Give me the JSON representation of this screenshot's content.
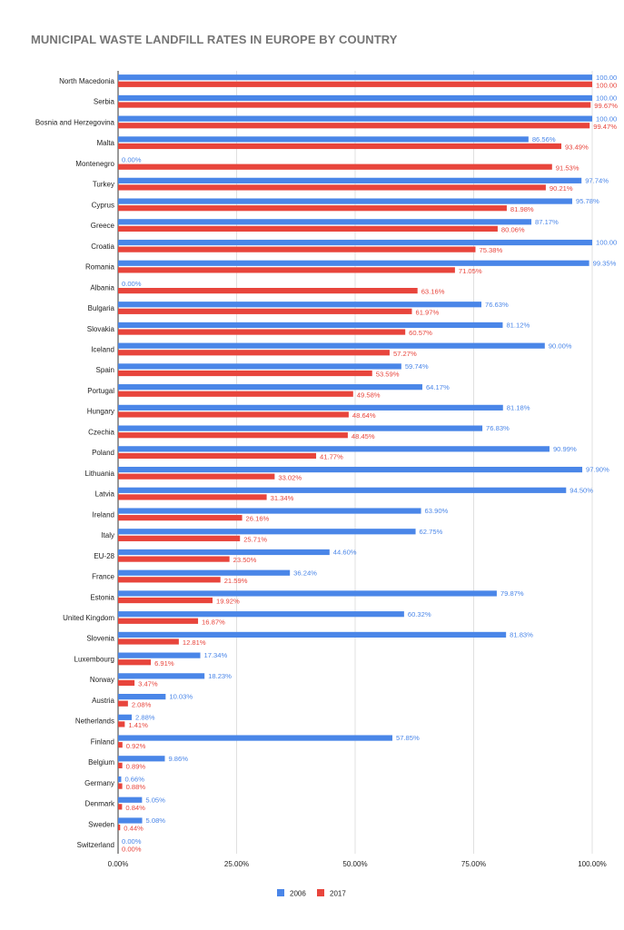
{
  "chart_data": {
    "type": "bar",
    "orientation": "horizontal",
    "title": "MUNICIPAL WASTE LANDFILL RATES IN EUROPE BY COUNTRY",
    "xlabel": "",
    "ylabel": "",
    "xlim": [
      0,
      100
    ],
    "x_ticks": [
      "0.00%",
      "25.00%",
      "50.00%",
      "75.00%",
      "100.00%"
    ],
    "grid": "vertical",
    "legend_position": "bottom",
    "categories": [
      "North Macedonia",
      "Serbia",
      "Bosnia and Herzegovina",
      "Malta",
      "Montenegro",
      "Turkey",
      "Cyprus",
      "Greece",
      "Croatia",
      "Romania",
      "Albania",
      "Bulgaria",
      "Slovakia",
      "Iceland",
      "Spain",
      "Portugal",
      "Hungary",
      "Czechia",
      "Poland",
      "Lithuania",
      "Latvia",
      "Ireland",
      "Italy",
      "EU-28",
      "France",
      "Estonia",
      "United Kingdom",
      "Slovenia",
      "Luxembourg",
      "Norway",
      "Austria",
      "Netherlands",
      "Finland",
      "Belgium",
      "Germany",
      "Denmark",
      "Sweden",
      "Switzerland"
    ],
    "series": [
      {
        "name": "2006",
        "color": "#4a86e8",
        "values": [
          100.0,
          100.0,
          100.0,
          86.56,
          0.0,
          97.74,
          95.78,
          87.17,
          100.0,
          99.35,
          0.0,
          76.63,
          81.12,
          90.0,
          59.74,
          64.17,
          81.18,
          76.83,
          90.99,
          97.9,
          94.5,
          63.9,
          62.75,
          44.6,
          36.24,
          79.87,
          60.32,
          81.83,
          17.34,
          18.23,
          10.03,
          2.88,
          57.85,
          9.86,
          0.66,
          5.05,
          5.08,
          0.0
        ],
        "labels": [
          "100.00",
          "100.00",
          "100.00",
          "86.56%",
          "0.00%",
          "97.74%",
          "95.78%",
          "87.17%",
          "100.00",
          "99.35%",
          "0.00%",
          "76.63%",
          "81.12%",
          "90.00%",
          "59.74%",
          "64.17%",
          "81.18%",
          "76.83%",
          "90.99%",
          "97.90%",
          "94.50%",
          "63.90%",
          "62.75%",
          "44.60%",
          "36.24%",
          "79.87%",
          "60.32%",
          "81.83%",
          "17.34%",
          "18.23%",
          "10.03%",
          "2.88%",
          "57.85%",
          "9.86%",
          "0.66%",
          "5.05%",
          "5.08%",
          "0.00%"
        ]
      },
      {
        "name": "2017",
        "color": "#e8453c",
        "values": [
          100.0,
          99.67,
          99.47,
          93.49,
          91.53,
          90.21,
          81.98,
          80.06,
          75.38,
          71.05,
          63.16,
          61.97,
          60.57,
          57.27,
          53.59,
          49.58,
          48.64,
          48.45,
          41.77,
          33.02,
          31.34,
          26.16,
          25.71,
          23.5,
          21.59,
          19.92,
          16.87,
          12.81,
          6.91,
          3.47,
          2.08,
          1.41,
          0.92,
          0.89,
          0.88,
          0.84,
          0.44,
          0.0
        ],
        "labels": [
          "100.00",
          "99.67%",
          "99.47%",
          "93.49%",
          "91.53%",
          "90.21%",
          "81.98%",
          "80.06%",
          "75.38%",
          "71.05%",
          "63.16%",
          "61.97%",
          "60.57%",
          "57.27%",
          "53.59%",
          "49.58%",
          "48.64%",
          "48.45%",
          "41.77%",
          "33.02%",
          "31.34%",
          "26.16%",
          "25.71%",
          "23.50%",
          "21.59%",
          "19.92%",
          "16.87%",
          "12.81%",
          "6.91%",
          "3.47%",
          "2.08%",
          "1.41%",
          "0.92%",
          "0.89%",
          "0.88%",
          "0.84%",
          "0.44%",
          "0.00%"
        ]
      }
    ]
  }
}
